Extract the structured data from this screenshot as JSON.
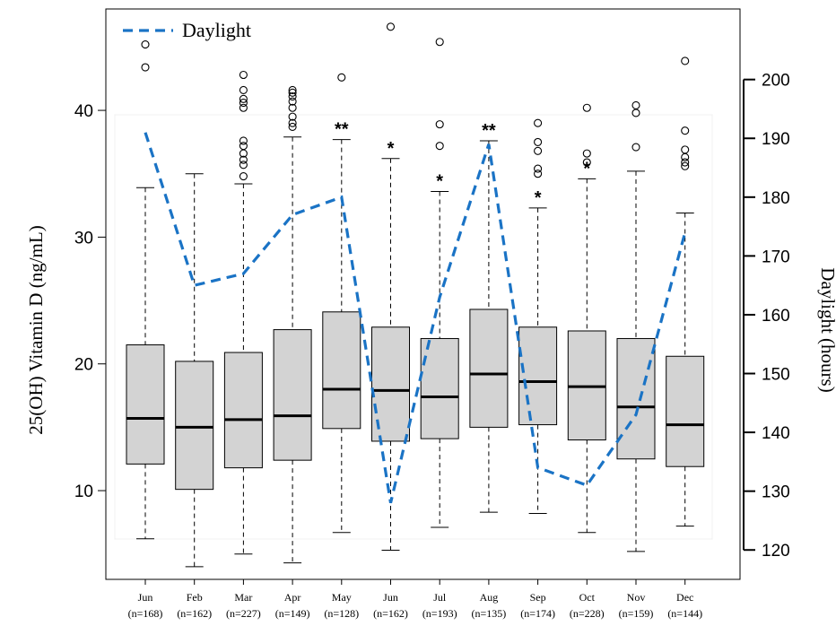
{
  "chart_data": {
    "type": "boxplot",
    "ylabel": "25(OH) Vitamin D (ng/mL)",
    "y2label": "Daylight (hours)",
    "ylim": [
      3,
      48
    ],
    "yticks": [
      "10",
      "20",
      "30",
      "40"
    ],
    "y2lim": [
      115,
      212
    ],
    "y2ticks": [
      "120",
      "130",
      "140",
      "150",
      "160",
      "170",
      "180",
      "190",
      "200"
    ],
    "legend": {
      "label": "Daylight",
      "position": "top-left",
      "color": "#1a73c5"
    },
    "box_color": "#d3d3d3",
    "categories": [
      {
        "month": "Jun",
        "n": "(n=168)",
        "low": 6.2,
        "q1": 12.1,
        "median": 15.7,
        "q3": 21.5,
        "high": 33.9,
        "outliers": [
          43.4,
          45.2
        ],
        "sig": ""
      },
      {
        "month": "Feb",
        "n": "(n=162)",
        "low": 4.0,
        "q1": 10.1,
        "median": 15.0,
        "q3": 20.2,
        "high": 35.0,
        "outliers": [],
        "sig": ""
      },
      {
        "month": "Mar",
        "n": "(n=227)",
        "low": 5.0,
        "q1": 11.8,
        "median": 15.6,
        "q3": 20.9,
        "high": 34.2,
        "outliers": [
          34.8,
          35.7,
          36.1,
          36.6,
          37.2,
          37.6,
          40.2,
          40.6,
          40.9,
          41.6,
          42.8
        ],
        "sig": ""
      },
      {
        "month": "Apr",
        "n": "(n=149)",
        "low": 4.3,
        "q1": 12.4,
        "median": 15.9,
        "q3": 22.7,
        "high": 37.9,
        "outliers": [
          38.7,
          39.0,
          39.5,
          40.2,
          40.7,
          41.1,
          41.4,
          41.6
        ],
        "sig": ""
      },
      {
        "month": "May",
        "n": "(n=128)",
        "low": 6.7,
        "q1": 14.9,
        "median": 18.0,
        "q3": 24.1,
        "high": 37.7,
        "outliers": [
          42.6
        ],
        "sig": "**"
      },
      {
        "month": "Jun",
        "n": "(n=162)",
        "low": 5.3,
        "q1": 13.9,
        "median": 17.9,
        "q3": 22.9,
        "high": 36.2,
        "outliers": [
          46.6
        ],
        "sig": "*"
      },
      {
        "month": "Jul",
        "n": "(n=193)",
        "low": 7.1,
        "q1": 14.1,
        "median": 17.4,
        "q3": 22.0,
        "high": 33.6,
        "outliers": [
          37.2,
          38.9,
          45.4
        ],
        "sig": "*"
      },
      {
        "month": "Aug",
        "n": "(n=135)",
        "low": 8.3,
        "q1": 15.0,
        "median": 19.2,
        "q3": 24.3,
        "high": 37.6,
        "outliers": [],
        "sig": "**"
      },
      {
        "month": "Sep",
        "n": "(n=174)",
        "low": 8.2,
        "q1": 15.2,
        "median": 18.6,
        "q3": 22.9,
        "high": 32.3,
        "outliers": [
          35.0,
          35.4,
          36.8,
          37.5,
          39.0
        ],
        "sig": "*"
      },
      {
        "month": "Oct",
        "n": "(n=228)",
        "low": 6.7,
        "q1": 14.0,
        "median": 18.2,
        "q3": 22.6,
        "high": 34.6,
        "outliers": [
          35.9,
          36.6,
          40.2
        ],
        "sig": "*"
      },
      {
        "month": "Nov",
        "n": "(n=159)",
        "low": 5.2,
        "q1": 12.5,
        "median": 16.6,
        "q3": 22.0,
        "high": 35.2,
        "outliers": [
          37.1,
          39.8,
          40.4
        ],
        "sig": ""
      },
      {
        "month": "Dec",
        "n": "(n=144)",
        "low": 7.2,
        "q1": 11.9,
        "median": 15.2,
        "q3": 20.6,
        "high": 31.9,
        "outliers": [
          35.6,
          35.9,
          36.3,
          36.9,
          38.4,
          43.9
        ],
        "sig": ""
      }
    ],
    "daylight": [
      191,
      165,
      167,
      177,
      180,
      128,
      163,
      189,
      134,
      131,
      143,
      174
    ]
  }
}
